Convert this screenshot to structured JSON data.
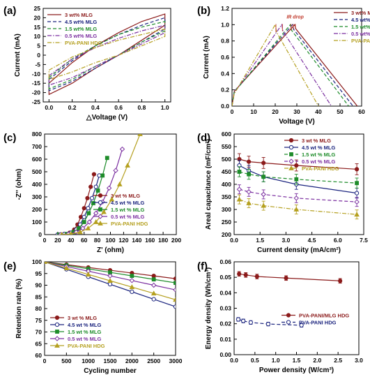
{
  "chart_data": [
    {
      "type": "line",
      "panel_label": "(a)",
      "xlabel": "△Voltage (V)",
      "ylabel": "Current (mA)",
      "xlim": [
        -0.05,
        1.05
      ],
      "ylim": [
        -25,
        25
      ],
      "xticks": [
        "0.0",
        "0.2",
        "0.4",
        "0.6",
        "0.8",
        "1.0"
      ],
      "yticks": [
        "-25",
        "-20",
        "-15",
        "-10",
        "-5",
        "0",
        "5",
        "10",
        "15",
        "20",
        "25"
      ],
      "legend_position": "top-left",
      "series": [
        {
          "name": "3 wt% MLG",
          "color": "#8b1a1a",
          "dash": "solid",
          "upper_y": [
            -15,
            -4,
            5,
            12,
            18,
            22
          ],
          "lower_y": [
            -21,
            -15,
            -7,
            0,
            8,
            16
          ]
        },
        {
          "name": "4.5 wt% MLG",
          "color": "#1a237e",
          "dash": "dash",
          "upper_y": [
            -13,
            -3,
            5,
            11,
            16,
            20
          ],
          "lower_y": [
            -19,
            -14,
            -7,
            0,
            7,
            14
          ]
        },
        {
          "name": "1.5 wt% MLG",
          "color": "#1e8c2a",
          "dash": "dash",
          "upper_y": [
            -12,
            -2,
            5,
            11,
            15,
            18
          ],
          "lower_y": [
            -18,
            -13,
            -6,
            0,
            7,
            13
          ]
        },
        {
          "name": "0.5 wt% MLG",
          "color": "#7b2fa0",
          "dash": "dashdot",
          "upper_y": [
            -11,
            -2,
            4,
            9,
            13,
            16
          ],
          "lower_y": [
            -16,
            -12,
            -6,
            0,
            6,
            12
          ]
        },
        {
          "name": "PVA-PANI HDG",
          "color": "#b5a020",
          "dash": "dashdot",
          "upper_y": [
            -8,
            -1,
            4,
            8,
            11,
            14
          ],
          "lower_y": [
            -13,
            -9,
            -4,
            0,
            5,
            10
          ]
        }
      ],
      "x": [
        0.0,
        0.2,
        0.4,
        0.6,
        0.8,
        1.0
      ]
    },
    {
      "type": "line",
      "panel_label": "(b)",
      "xlabel": "Voltage (V)",
      "ylabel": "Current (mA)",
      "xlim": [
        0,
        60
      ],
      "ylim": [
        0,
        1.2
      ],
      "xticks": [
        "0",
        "10",
        "20",
        "30",
        "40",
        "50",
        "60"
      ],
      "yticks": [
        "0.0",
        "0.2",
        "0.4",
        "0.6",
        "0.8",
        "1.0",
        "1.2"
      ],
      "legend_position": "top-right",
      "annotation": "IR drop",
      "series": [
        {
          "name": "3 wt% MLG",
          "color": "#8b1a1a",
          "dash": "solid",
          "points": [
            [
              0,
              0
            ],
            [
              1,
              0.18
            ],
            [
              29,
              1.0
            ],
            [
              29.5,
              0.95
            ],
            [
              58,
              0
            ]
          ]
        },
        {
          "name": "4.5 wt% MLG",
          "color": "#1a237e",
          "dash": "dash",
          "points": [
            [
              0,
              0
            ],
            [
              1,
              0.18
            ],
            [
              28,
              1.0
            ],
            [
              28.6,
              0.94
            ],
            [
              56,
              0
            ]
          ]
        },
        {
          "name": "1.5 wt% MLG",
          "color": "#1e8c2a",
          "dash": "dash",
          "points": [
            [
              0,
              0
            ],
            [
              1,
              0.17
            ],
            [
              27,
              1.0
            ],
            [
              27.6,
              0.93
            ],
            [
              54,
              0
            ]
          ]
        },
        {
          "name": "0.5 wt% MLG",
          "color": "#7b2fa0",
          "dash": "dashdot",
          "points": [
            [
              0,
              0
            ],
            [
              1,
              0.16
            ],
            [
              23,
              1.0
            ],
            [
              23.6,
              0.92
            ],
            [
              46,
              0
            ]
          ]
        },
        {
          "name": "PVA-PANI HDG",
          "color": "#b5a020",
          "dash": "dashdot",
          "points": [
            [
              0,
              0
            ],
            [
              1,
              0.15
            ],
            [
              20,
              1.0
            ],
            [
              20.6,
              0.91
            ],
            [
              40,
              0
            ]
          ]
        }
      ]
    },
    {
      "type": "scatter",
      "panel_label": "(c)",
      "xlabel": "Z' (ohm)",
      "ylabel": "-Z'' (ohm)",
      "xlim": [
        0,
        200
      ],
      "ylim": [
        0,
        800
      ],
      "xticks": [
        "0",
        "20",
        "40",
        "60",
        "80",
        "100",
        "120",
        "140",
        "160",
        "180",
        "200"
      ],
      "yticks": [
        "0",
        "100",
        "200",
        "300",
        "400",
        "500",
        "600",
        "700",
        "800"
      ],
      "legend_position": "bottom-right",
      "series": [
        {
          "name": "3 wt % MLG",
          "color": "#8b1a1a",
          "marker": "circle",
          "x": [
            20,
            30,
            38,
            45,
            50,
            55,
            60,
            65,
            70,
            75
          ],
          "y": [
            0,
            5,
            15,
            40,
            80,
            140,
            210,
            290,
            380,
            480
          ]
        },
        {
          "name": "4.5 wt % MLG",
          "color": "#1a237e",
          "marker": "circle-open",
          "x": [
            20,
            30,
            40,
            48,
            54,
            60,
            66,
            72,
            78,
            83
          ],
          "y": [
            0,
            5,
            15,
            40,
            80,
            140,
            210,
            290,
            380,
            470
          ]
        },
        {
          "name": "1.5 wt % MLG",
          "color": "#1e8c2a",
          "marker": "square",
          "x": [
            22,
            34,
            44,
            52,
            60,
            67,
            74,
            81,
            88,
            95
          ],
          "y": [
            0,
            5,
            20,
            50,
            100,
            170,
            250,
            350,
            470,
            610
          ]
        },
        {
          "name": "0.5 wt % MLG",
          "color": "#7b2fa0",
          "marker": "diamond-open",
          "x": [
            24,
            36,
            48,
            58,
            68,
            78,
            88,
            98,
            108,
            118
          ],
          "y": [
            0,
            5,
            20,
            50,
            100,
            170,
            260,
            370,
            510,
            680
          ]
        },
        {
          "name": "PVA-PANI HDG",
          "color": "#b5a020",
          "marker": "triangle",
          "x": [
            26,
            40,
            54,
            66,
            78,
            90,
            102,
            114,
            126,
            145
          ],
          "y": [
            0,
            5,
            20,
            50,
            100,
            180,
            280,
            400,
            550,
            800
          ]
        }
      ]
    },
    {
      "type": "line",
      "panel_label": "(d)",
      "xlabel": "Current density (mA/cm²)",
      "ylabel": "Areal capacitance (mF/cm²)",
      "xlim": [
        0,
        7.5
      ],
      "ylim": [
        200,
        600
      ],
      "xticks": [
        "0.0",
        "1.5",
        "3.0",
        "4.5",
        "6.0",
        "7.5"
      ],
      "yticks": [
        "200",
        "250",
        "300",
        "350",
        "400",
        "450",
        "500",
        "550",
        "600"
      ],
      "legend_position": "top-right",
      "x": [
        0.3,
        0.85,
        1.7,
        3.6,
        7.1
      ],
      "series": [
        {
          "name": "3 wt % MLG",
          "color": "#8b1a1a",
          "dash": "solid",
          "marker": "circle",
          "values": [
            500,
            490,
            485,
            475,
            460
          ],
          "err": 22
        },
        {
          "name": "4.5 wt % MLG",
          "color": "#1a237e",
          "dash": "solid",
          "marker": "circle-open",
          "values": [
            475,
            455,
            430,
            400,
            365
          ],
          "err": 20
        },
        {
          "name": "1.5 wt % MLG",
          "color": "#1e8c2a",
          "dash": "dash",
          "marker": "square",
          "values": [
            450,
            440,
            430,
            420,
            405
          ],
          "err": 20
        },
        {
          "name": "0.5 wt % MLG",
          "color": "#7b2fa0",
          "dash": "dash",
          "marker": "diamond-open",
          "values": [
            380,
            370,
            360,
            345,
            330
          ],
          "err": 18
        },
        {
          "name": "PVA-PANI HDG",
          "color": "#b5a020",
          "dash": "dashdot",
          "marker": "triangle",
          "values": [
            340,
            325,
            315,
            300,
            280
          ],
          "err": 18
        }
      ]
    },
    {
      "type": "line",
      "panel_label": "(e)",
      "xlabel": "Cycling number",
      "ylabel": "Retention rate (%)",
      "xlim": [
        0,
        3000
      ],
      "ylim": [
        60,
        100
      ],
      "xticks": [
        "0",
        "500",
        "1000",
        "1500",
        "2000",
        "2500",
        "3000"
      ],
      "yticks": [
        "60",
        "65",
        "70",
        "75",
        "80",
        "85",
        "90",
        "95",
        "100"
      ],
      "legend_position": "bottom-left",
      "x": [
        0,
        500,
        1000,
        1500,
        2000,
        2500,
        3000
      ],
      "series": [
        {
          "name": "3 wt % MLG",
          "color": "#8b1a1a",
          "marker": "circle",
          "values": [
            100,
            98.8,
            97.6,
            96.4,
            95.2,
            94.0,
            92.8
          ]
        },
        {
          "name": "4.5 wt % MLG",
          "color": "#1a237e",
          "marker": "circle-open",
          "values": [
            100,
            96.8,
            93.6,
            90.4,
            87.2,
            84.0,
            80.8
          ]
        },
        {
          "name": "1.5 wt % MLG",
          "color": "#1e8c2a",
          "marker": "square",
          "values": [
            100,
            98.5,
            97.0,
            95.5,
            94.0,
            92.5,
            91.0
          ]
        },
        {
          "name": "0.5 wt % MLG",
          "color": "#7b2fa0",
          "marker": "diamond-open",
          "values": [
            100,
            98.0,
            96.0,
            94.0,
            92.0,
            90.0,
            88.0
          ]
        },
        {
          "name": "PVA-PANI HDG",
          "color": "#b5a020",
          "marker": "triangle",
          "values": [
            100,
            97.3,
            94.6,
            91.9,
            89.2,
            86.5,
            83.8
          ]
        }
      ]
    },
    {
      "type": "line",
      "panel_label": "(f)",
      "xlabel": "Power density (W/cm³)",
      "ylabel": "Energy density (Wh/cm³)",
      "xlim": [
        0,
        3.0
      ],
      "ylim": [
        0.0,
        0.06
      ],
      "xticks": [
        "0.0",
        "0.5",
        "1.0",
        "1.5",
        "2.0",
        "2.5",
        "3.0"
      ],
      "yticks": [
        "0.00",
        "0.01",
        "0.02",
        "0.03",
        "0.04",
        "0.05",
        "0.06"
      ],
      "legend_position": "center-right",
      "series": [
        {
          "name": "PVA-PANI/MLG HDG",
          "color": "#8b1a1a",
          "dash": "solid",
          "marker": "circle",
          "x": [
            0.12,
            0.28,
            0.55,
            1.25,
            2.55
          ],
          "values": [
            0.0522,
            0.0515,
            0.0505,
            0.0495,
            0.0477
          ],
          "err": 0.0015
        },
        {
          "name": "PVA-PANI HDG",
          "color": "#1a237e",
          "dash": "dash",
          "marker": "circle-open",
          "x": [
            0.1,
            0.22,
            0.4,
            0.82,
            1.62
          ],
          "values": [
            0.0228,
            0.0218,
            0.0208,
            0.0198,
            0.019
          ],
          "err": 0.0012
        }
      ]
    }
  ]
}
